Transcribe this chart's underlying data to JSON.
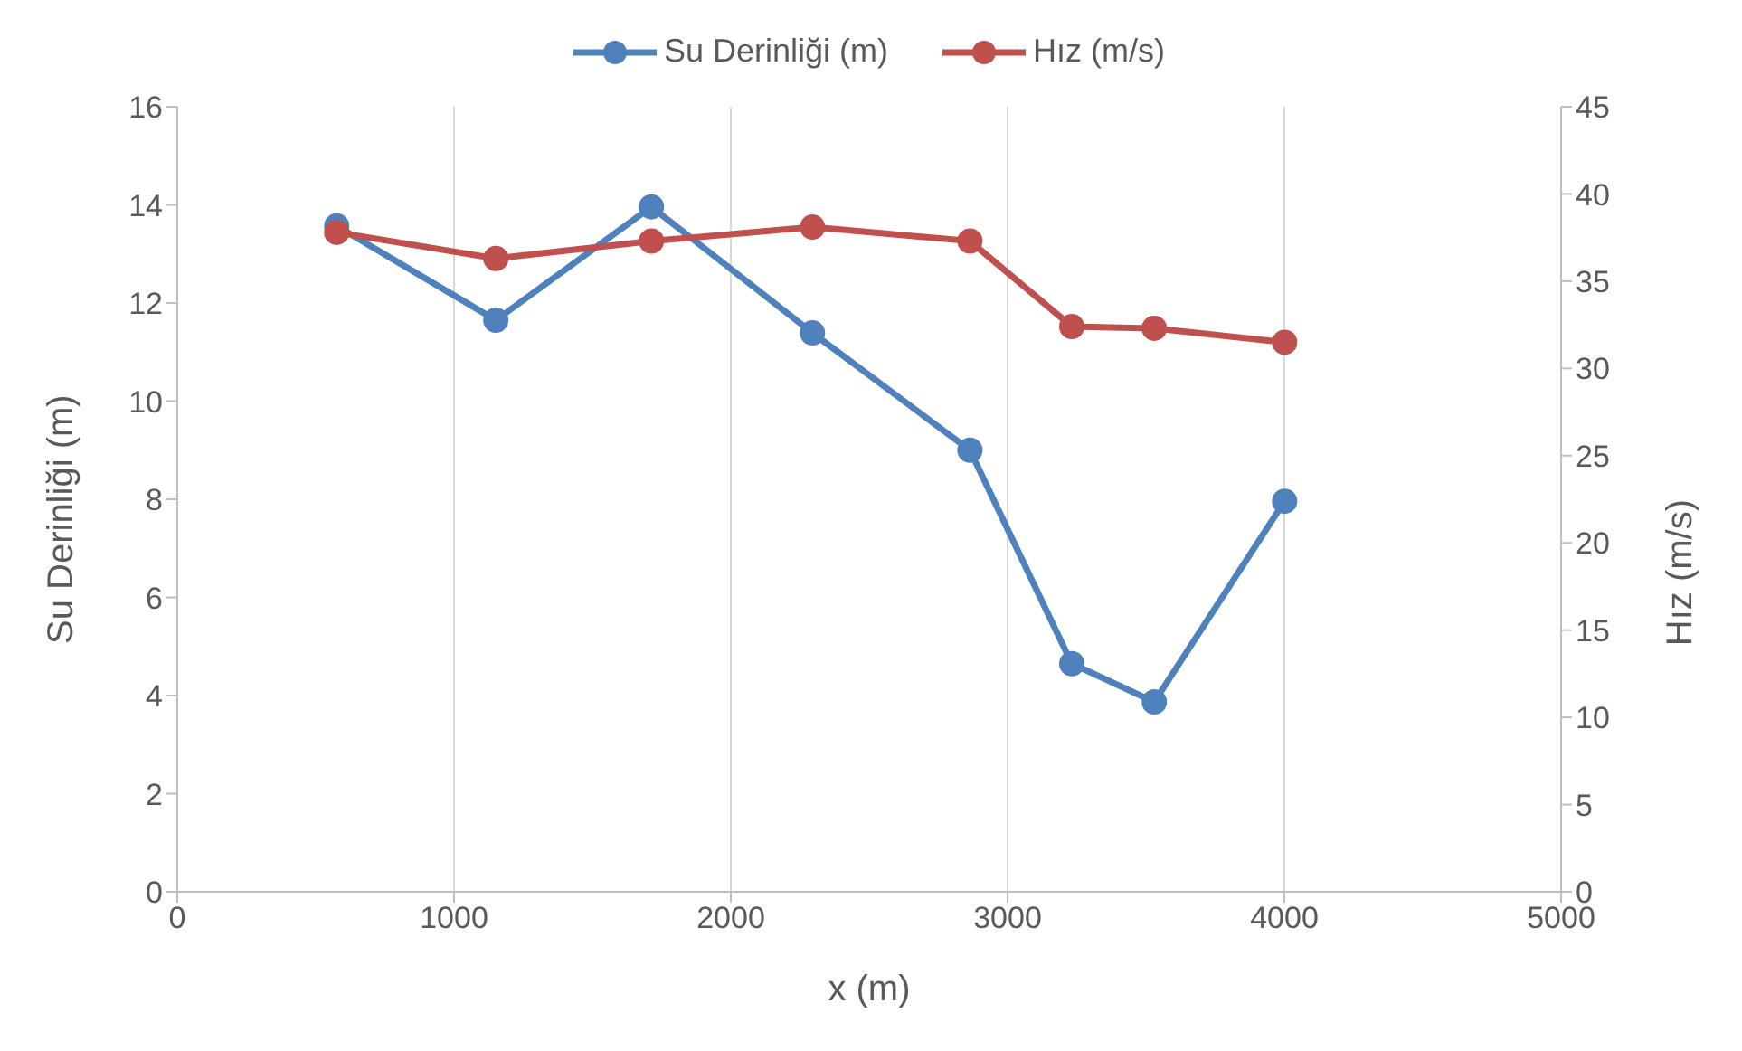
{
  "chart_data": {
    "type": "line",
    "xlabel": "x (m)",
    "ylabel": "Su Derinliği (m)",
    "y2label": "Hız (m/s)",
    "x": [
      576,
      1151,
      1713,
      2295,
      2864,
      3232,
      3530,
      4001
    ],
    "series": [
      {
        "name": "Su Derinliği (m)",
        "color": "#4f81bd",
        "values": [
          13.57,
          11.65,
          13.96,
          11.39,
          9.0,
          4.65,
          3.87,
          7.96
        ]
      },
      {
        "name": "Hız (m/s)",
        "color": "#c0504d",
        "axis": "y2",
        "values": [
          37.8,
          36.3,
          37.3,
          38.1,
          37.3,
          32.4,
          32.3,
          31.5
        ]
      }
    ],
    "xlim": [
      0,
      5000
    ],
    "xticks": [
      0,
      1000,
      2000,
      3000,
      4000,
      5000
    ],
    "ylim": [
      0,
      16
    ],
    "yticks": [
      0,
      2,
      4,
      6,
      8,
      10,
      12,
      14,
      16
    ],
    "y2lim": [
      0,
      45
    ],
    "y2ticks": [
      0,
      5,
      10,
      15,
      20,
      25,
      30,
      35,
      40,
      45
    ],
    "grid": "x",
    "legend": "top",
    "marker": "circle",
    "line_style": "solid"
  }
}
